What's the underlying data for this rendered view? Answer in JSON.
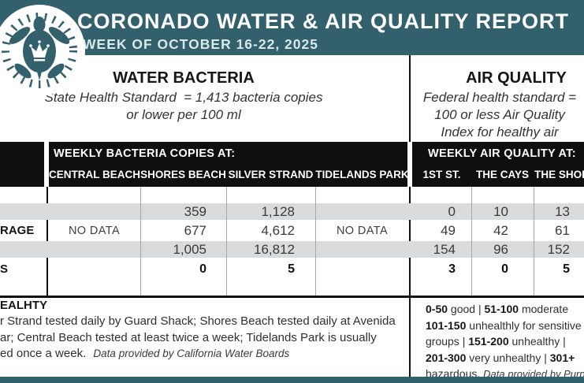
{
  "theme": {
    "teal": "#33606d",
    "band_black": "#0f0f0f",
    "stripe_gray": "#d9dbdd"
  },
  "header": {
    "title": "CORONADO WATER & AIR QUALITY REPORT",
    "subtitle": "WEEK OF OCTOBER 16-22, 2025",
    "logo": "crowned-sea-turtle-badge"
  },
  "water": {
    "heading": "WATER BACTERIA",
    "standard_line1": "State Health Standard  = 1,413 bacteria copies",
    "standard_line2": "or lower per 100 ml",
    "table_title": "WEEKLY BACTERIA COPIES AT:",
    "columns": [
      "CENTRAL BEACH",
      "SHORES BEACH",
      "SILVER STRAND",
      "TIDELANDS PARK"
    ],
    "rows": [
      [
        "",
        "359",
        "1,128",
        ""
      ],
      [
        "NO DATA",
        "677",
        "4,612",
        "NO DATA"
      ],
      [
        "",
        "1,005",
        "16,812",
        ""
      ],
      [
        "",
        "0",
        "5",
        ""
      ]
    ],
    "row_label_fragments": [
      "",
      "RAGE",
      "",
      "S"
    ],
    "notes": {
      "heading_fragment": "EALHTY",
      "line1": "r Strand tested daily by Guard Shack; Shores Beach tested daily at Avenida",
      "line2": "ar; Central Beach tested at least twice a week; Tidelands Park is usually",
      "line3": "ed once a week.",
      "credit": "Data provided by California Water Boards"
    }
  },
  "air": {
    "heading": "AIR QUALITY",
    "standard_line1": "Federal health standard =",
    "standard_line2": "100 or less Air Quality",
    "standard_line3": "Index for healthy air",
    "table_title": "WEEKLY AIR QUALITY AT:",
    "columns": [
      "1ST ST.",
      "THE CAYS",
      "THE SHORES"
    ],
    "rows": [
      [
        "0",
        "10",
        "13"
      ],
      [
        "49",
        "42",
        "61"
      ],
      [
        "154",
        "96",
        "152"
      ],
      [
        "3",
        "0",
        "5"
      ]
    ],
    "legend_lines": [
      [
        {
          "t": "0-50",
          "b": true
        },
        {
          "t": " good | "
        },
        {
          "t": "51-100",
          "b": true
        },
        {
          "t": " moderate"
        }
      ],
      [
        {
          "t": "101-150",
          "b": true
        },
        {
          "t": " unhealthly for sensitive"
        }
      ],
      [
        {
          "t": "groups | "
        },
        {
          "t": "151-200",
          "b": true
        },
        {
          "t": " unhealthy |"
        }
      ],
      [
        {
          "t": "201-300",
          "b": true
        },
        {
          "t": " very unhealthy | "
        },
        {
          "t": "301+",
          "b": true
        }
      ],
      [
        {
          "t": "hazardous. "
        },
        {
          "t": "Data provided by PurpleAir",
          "i": true
        }
      ]
    ]
  }
}
